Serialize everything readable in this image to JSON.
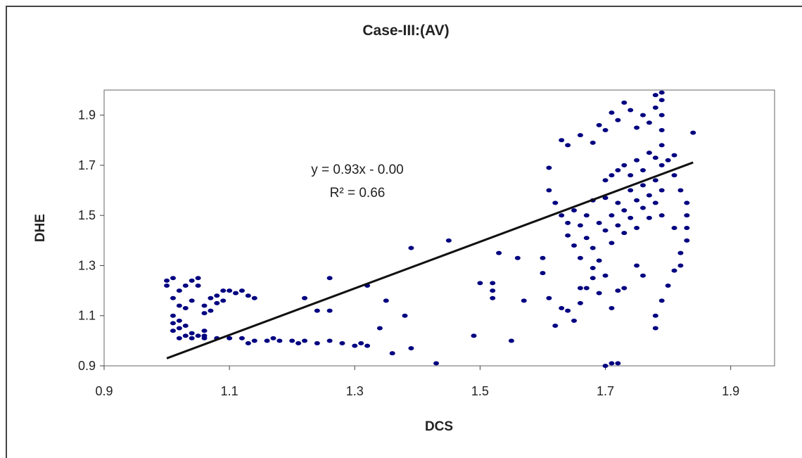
{
  "chart_data": {
    "type": "scatter",
    "title": "Case-III:(AV)",
    "xlabel": "DCS",
    "ylabel": "DHE",
    "xlim": [
      0.9,
      1.97
    ],
    "ylim": [
      0.9,
      2.0
    ],
    "x_ticks": [
      "0.9",
      "1.1",
      "1.3",
      "1.5",
      "1.7",
      "1.9"
    ],
    "y_ticks": [
      "0.9",
      "1.1",
      "1.3",
      "1.5",
      "1.7",
      "1.9"
    ],
    "grid": false,
    "legend": "none",
    "marker_color": "#000080",
    "trendline": {
      "equation": "y = 0.93x - 0.00",
      "r_squared_label": "R² = 0.66",
      "slope": 0.93,
      "intercept": 0.0,
      "x_range": [
        1.0,
        1.84
      ],
      "color": "#111111"
    },
    "series": [
      {
        "values": [
          [
            1.0,
            1.22
          ],
          [
            1.0,
            1.24
          ],
          [
            1.01,
            1.17
          ],
          [
            1.01,
            1.25
          ],
          [
            1.02,
            1.2
          ],
          [
            1.02,
            1.14
          ],
          [
            1.03,
            1.22
          ],
          [
            1.03,
            1.13
          ],
          [
            1.04,
            1.16
          ],
          [
            1.04,
            1.24
          ],
          [
            1.05,
            1.22
          ],
          [
            1.05,
            1.25
          ],
          [
            1.06,
            1.14
          ],
          [
            1.06,
            1.11
          ],
          [
            1.07,
            1.17
          ],
          [
            1.07,
            1.12
          ],
          [
            1.08,
            1.18
          ],
          [
            1.08,
            1.15
          ],
          [
            1.09,
            1.2
          ],
          [
            1.09,
            1.16
          ],
          [
            1.1,
            1.2
          ],
          [
            1.11,
            1.19
          ],
          [
            1.12,
            1.2
          ],
          [
            1.13,
            1.18
          ],
          [
            1.14,
            1.17
          ],
          [
            1.01,
            1.1
          ],
          [
            1.01,
            1.07
          ],
          [
            1.01,
            1.04
          ],
          [
            1.02,
            1.08
          ],
          [
            1.02,
            1.05
          ],
          [
            1.03,
            1.06
          ],
          [
            1.03,
            1.02
          ],
          [
            1.04,
            1.03
          ],
          [
            1.05,
            1.02
          ],
          [
            1.06,
            1.04
          ],
          [
            1.06,
            1.02
          ],
          [
            1.02,
            1.01
          ],
          [
            1.04,
            1.01
          ],
          [
            1.06,
            1.01
          ],
          [
            1.08,
            1.01
          ],
          [
            1.1,
            1.01
          ],
          [
            1.12,
            1.01
          ],
          [
            1.14,
            1.0
          ],
          [
            1.16,
            1.0
          ],
          [
            1.18,
            1.0
          ],
          [
            1.2,
            1.0
          ],
          [
            1.22,
            1.0
          ],
          [
            1.24,
            0.99
          ],
          [
            1.13,
            0.99
          ],
          [
            1.17,
            1.01
          ],
          [
            1.21,
            0.99
          ],
          [
            1.26,
            1.0
          ],
          [
            1.28,
            0.99
          ],
          [
            1.31,
            0.99
          ],
          [
            1.3,
            0.98
          ],
          [
            1.32,
            0.98
          ],
          [
            1.26,
            1.12
          ],
          [
            1.26,
            1.25
          ],
          [
            1.24,
            1.12
          ],
          [
            1.22,
            1.17
          ],
          [
            1.32,
            1.22
          ],
          [
            1.34,
            1.05
          ],
          [
            1.35,
            1.16
          ],
          [
            1.36,
            0.95
          ],
          [
            1.39,
            1.37
          ],
          [
            1.38,
            1.1
          ],
          [
            1.39,
            0.97
          ],
          [
            1.43,
            0.91
          ],
          [
            1.45,
            1.4
          ],
          [
            1.49,
            1.02
          ],
          [
            1.5,
            1.23
          ],
          [
            1.52,
            1.23
          ],
          [
            1.52,
            1.17
          ],
          [
            1.52,
            1.2
          ],
          [
            1.53,
            1.35
          ],
          [
            1.55,
            1.0
          ],
          [
            1.56,
            1.33
          ],
          [
            1.57,
            1.16
          ],
          [
            1.6,
            1.33
          ],
          [
            1.6,
            1.27
          ],
          [
            1.61,
            1.69
          ],
          [
            1.61,
            1.6
          ],
          [
            1.61,
            1.17
          ],
          [
            1.62,
            1.06
          ],
          [
            1.63,
            1.13
          ],
          [
            1.64,
            1.12
          ],
          [
            1.65,
            1.08
          ],
          [
            1.66,
            1.15
          ],
          [
            1.66,
            1.21
          ],
          [
            1.67,
            1.21
          ],
          [
            1.68,
            1.29
          ],
          [
            1.68,
            1.25
          ],
          [
            1.69,
            1.19
          ],
          [
            1.7,
            1.26
          ],
          [
            1.71,
            1.13
          ],
          [
            1.72,
            1.2
          ],
          [
            1.73,
            1.21
          ],
          [
            1.75,
            1.3
          ],
          [
            1.76,
            1.26
          ],
          [
            1.62,
            1.55
          ],
          [
            1.63,
            1.5
          ],
          [
            1.64,
            1.47
          ],
          [
            1.64,
            1.42
          ],
          [
            1.65,
            1.52
          ],
          [
            1.65,
            1.38
          ],
          [
            1.66,
            1.46
          ],
          [
            1.66,
            1.33
          ],
          [
            1.67,
            1.5
          ],
          [
            1.67,
            1.41
          ],
          [
            1.68,
            1.56
          ],
          [
            1.68,
            1.37
          ],
          [
            1.69,
            1.47
          ],
          [
            1.69,
            1.32
          ],
          [
            1.7,
            1.57
          ],
          [
            1.7,
            1.44
          ],
          [
            1.71,
            1.39
          ],
          [
            1.71,
            1.5
          ],
          [
            1.72,
            1.55
          ],
          [
            1.72,
            1.46
          ],
          [
            1.73,
            1.52
          ],
          [
            1.73,
            1.43
          ],
          [
            1.74,
            1.6
          ],
          [
            1.74,
            1.49
          ],
          [
            1.75,
            1.56
          ],
          [
            1.75,
            1.45
          ],
          [
            1.76,
            1.62
          ],
          [
            1.76,
            1.53
          ],
          [
            1.77,
            1.58
          ],
          [
            1.77,
            1.49
          ],
          [
            1.78,
            1.64
          ],
          [
            1.78,
            1.55
          ],
          [
            1.79,
            1.6
          ],
          [
            1.79,
            1.5
          ],
          [
            1.7,
            1.64
          ],
          [
            1.71,
            1.66
          ],
          [
            1.72,
            1.68
          ],
          [
            1.73,
            1.7
          ],
          [
            1.74,
            1.66
          ],
          [
            1.75,
            1.72
          ],
          [
            1.76,
            1.68
          ],
          [
            1.77,
            1.75
          ],
          [
            1.78,
            1.73
          ],
          [
            1.79,
            1.7
          ],
          [
            1.8,
            1.72
          ],
          [
            1.81,
            1.74
          ],
          [
            1.63,
            1.8
          ],
          [
            1.64,
            1.78
          ],
          [
            1.66,
            1.82
          ],
          [
            1.68,
            1.79
          ],
          [
            1.69,
            1.86
          ],
          [
            1.7,
            1.84
          ],
          [
            1.71,
            1.91
          ],
          [
            1.72,
            1.88
          ],
          [
            1.73,
            1.95
          ],
          [
            1.74,
            1.92
          ],
          [
            1.75,
            1.85
          ],
          [
            1.76,
            1.9
          ],
          [
            1.77,
            1.87
          ],
          [
            1.78,
            1.93
          ],
          [
            1.78,
            1.98
          ],
          [
            1.79,
            1.99
          ],
          [
            1.79,
            1.96
          ],
          [
            1.79,
            1.9
          ],
          [
            1.79,
            1.84
          ],
          [
            1.79,
            1.78
          ],
          [
            1.81,
            1.66
          ],
          [
            1.82,
            1.6
          ],
          [
            1.83,
            1.55
          ],
          [
            1.83,
            1.5
          ],
          [
            1.83,
            1.45
          ],
          [
            1.83,
            1.4
          ],
          [
            1.82,
            1.35
          ],
          [
            1.81,
            1.28
          ],
          [
            1.8,
            1.22
          ],
          [
            1.79,
            1.16
          ],
          [
            1.78,
            1.1
          ],
          [
            1.78,
            1.05
          ],
          [
            1.84,
            1.83
          ],
          [
            1.81,
            1.45
          ],
          [
            1.82,
            1.3
          ],
          [
            1.7,
            0.9
          ],
          [
            1.71,
            0.91
          ],
          [
            1.72,
            0.91
          ]
        ]
      }
    ]
  }
}
